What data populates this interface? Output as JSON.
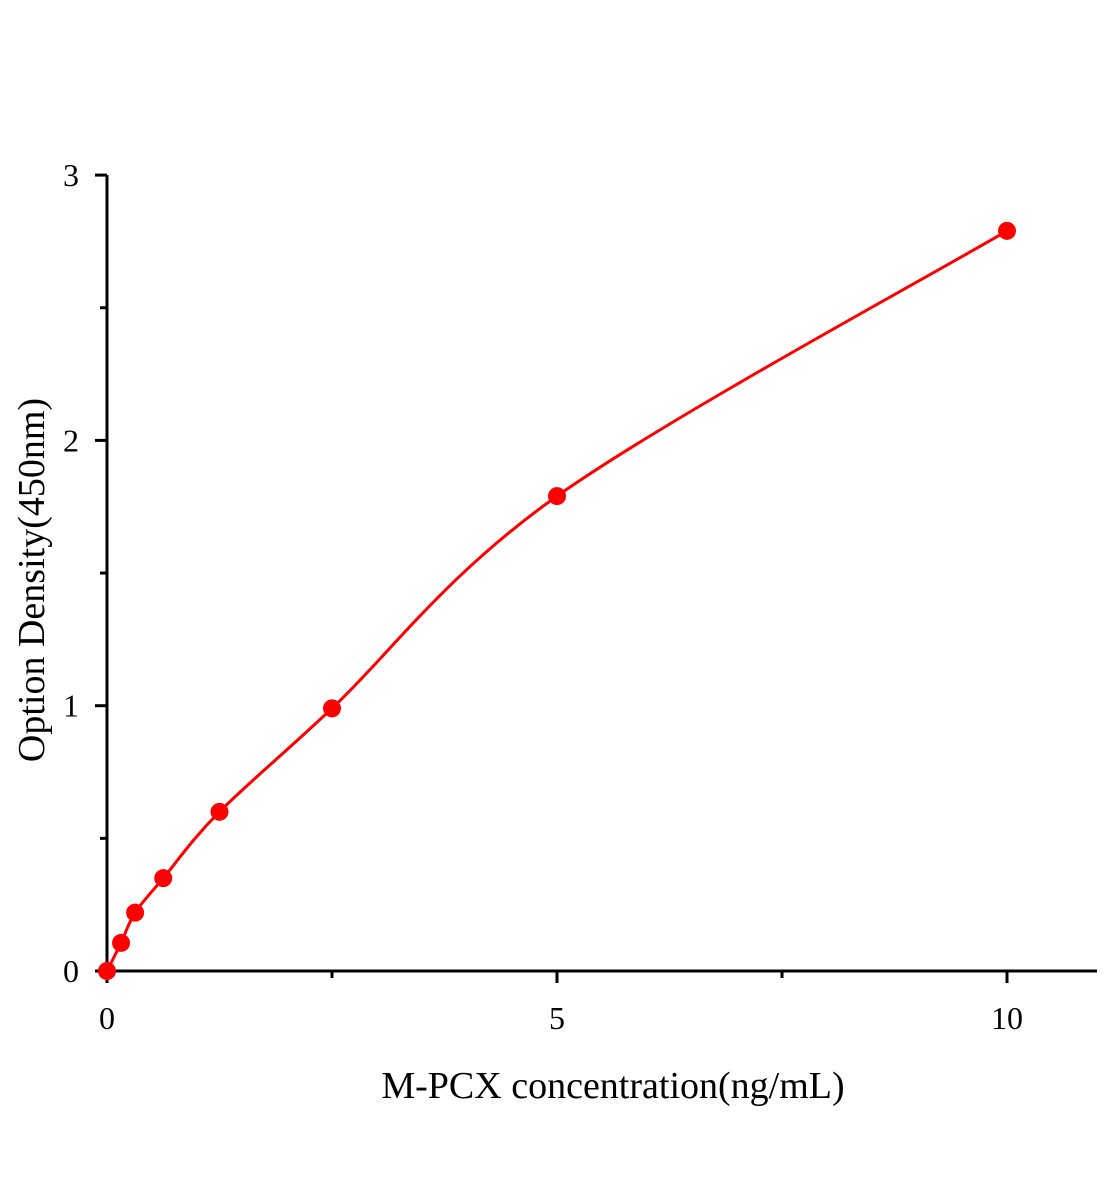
{
  "chart_data": {
    "type": "scatter",
    "title": "",
    "xlabel": "M-PCX concentration(ng/mL)",
    "ylabel": "Option Density(450nm)",
    "xlim": [
      0,
      11
    ],
    "ylim": [
      0,
      3
    ],
    "x_ticks": [
      0,
      5,
      10
    ],
    "x_tick_labels": [
      "0",
      "5",
      "10"
    ],
    "x_minor_ticks": [
      2.5,
      7.5
    ],
    "y_ticks": [
      0,
      1,
      2,
      3
    ],
    "y_tick_labels": [
      "0",
      "1",
      "2",
      "3"
    ],
    "y_minor_ticks": [
      0.5,
      1.5,
      2.5
    ],
    "grid": false,
    "color": "#ff0000",
    "series": [
      {
        "points": [
          {
            "x": 0,
            "y": 0
          },
          {
            "x": 0.156,
            "y": 0.106
          },
          {
            "x": 0.3125,
            "y": 0.22
          },
          {
            "x": 0.625,
            "y": 0.35
          },
          {
            "x": 1.25,
            "y": 0.6
          },
          {
            "x": 2.5,
            "y": 0.99
          },
          {
            "x": 5,
            "y": 1.79
          },
          {
            "x": 10,
            "y": 2.79
          }
        ],
        "fit_curve": true
      }
    ]
  }
}
